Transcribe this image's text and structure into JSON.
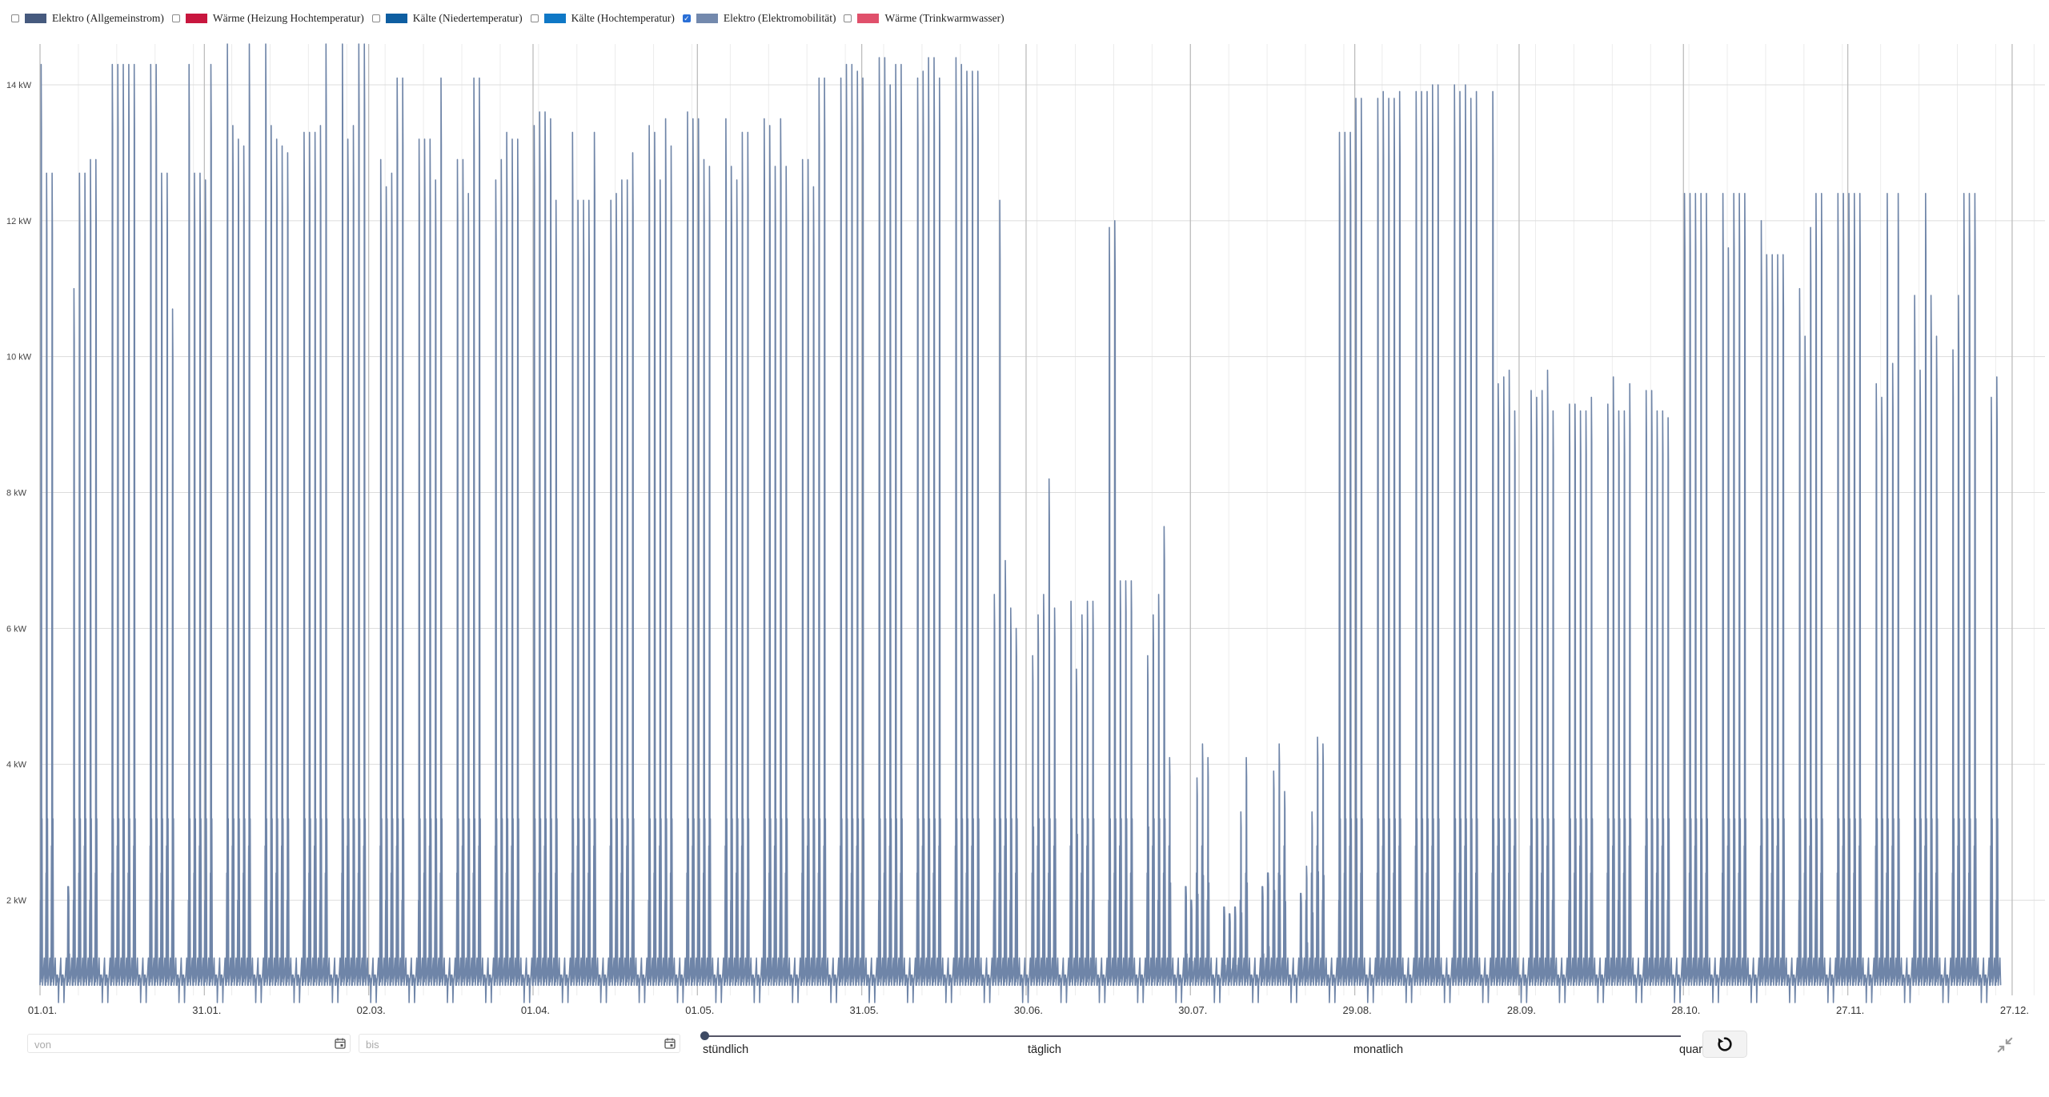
{
  "legend": [
    {
      "label": "Elektro (Allgemeinstrom)",
      "color": "#465a7e",
      "checked": false
    },
    {
      "label": "Wärme (Heizung Hochtemperatur)",
      "color": "#c8163e",
      "checked": false
    },
    {
      "label": "Kälte (Niedertemperatur)",
      "color": "#0e5ea1",
      "checked": false
    },
    {
      "label": "Kälte (Hochtemperatur)",
      "color": "#0f78c6",
      "checked": false
    },
    {
      "label": "Elektro (Elektromobilität)",
      "color": "#7389ad",
      "checked": true
    },
    {
      "label": "Wärme (Trinkwarmwasser)",
      "color": "#e0506b",
      "checked": false
    }
  ],
  "controls": {
    "from_placeholder": "von",
    "to_placeholder": "bis",
    "resolution_options": [
      "stündlich",
      "täglich",
      "monatlich",
      "quartalsweise"
    ],
    "selected_resolution": "stündlich",
    "reset_icon": "reset-icon",
    "collapse_icon": "collapse-icon"
  },
  "chart_data": {
    "type": "line",
    "title": "",
    "xlabel": "",
    "ylabel": "",
    "unit": "kW",
    "ylim": [
      0.6,
      14.6
    ],
    "yticks": [
      "2 kW",
      "4 kW",
      "6 kW",
      "8 kW",
      "10 kW",
      "12 kW",
      "14 kW"
    ],
    "ytick_values": [
      2,
      4,
      6,
      8,
      10,
      12,
      14
    ],
    "xticks": [
      "01.01.",
      "31.01.",
      "02.03.",
      "01.04.",
      "01.05.",
      "31.05.",
      "30.06.",
      "30.07.",
      "29.08.",
      "28.09.",
      "28.10.",
      "27.11.",
      "27.12."
    ],
    "xtick_days": [
      0,
      30,
      60,
      90,
      120,
      150,
      180,
      210,
      240,
      270,
      300,
      330,
      360
    ],
    "x_range_days": [
      0,
      366
    ],
    "grid": true,
    "series": [
      {
        "name": "Elektro (Elektromobilität)",
        "color": "#6f85a8",
        "baseline_kw": 0.75,
        "daily_peaks_kw": [
          14.3,
          12.7,
          12.7,
          0.9,
          0.9,
          2.2,
          11.0,
          12.7,
          12.7,
          12.9,
          12.9,
          0.9,
          0.9,
          14.3,
          14.3,
          14.3,
          14.3,
          14.3,
          0.9,
          0.9,
          14.3,
          14.3,
          12.7,
          12.7,
          10.7,
          0.9,
          0.9,
          14.3,
          12.7,
          12.7,
          12.6,
          14.3,
          0.9,
          0.9,
          14.6,
          13.4,
          13.2,
          13.1,
          14.6,
          0.9,
          0.9,
          14.6,
          13.4,
          13.2,
          13.1,
          13.0,
          0.9,
          0.9,
          13.3,
          13.3,
          13.3,
          13.4,
          14.6,
          0.9,
          0.9,
          14.6,
          13.2,
          13.4,
          14.6,
          14.6,
          0.9,
          0.9,
          12.9,
          12.5,
          12.7,
          14.1,
          14.1,
          0.9,
          0.9,
          13.2,
          13.2,
          13.2,
          12.6,
          14.1,
          0.9,
          0.9,
          12.9,
          12.9,
          12.4,
          14.1,
          14.1,
          0.9,
          0.9,
          12.6,
          12.9,
          13.3,
          13.2,
          13.2,
          0.9,
          0.9,
          13.4,
          13.6,
          13.6,
          13.5,
          12.3,
          0.9,
          0.9,
          13.3,
          12.3,
          12.3,
          12.3,
          13.3,
          0.9,
          0.9,
          12.3,
          12.4,
          12.6,
          12.6,
          13.0,
          0.9,
          0.9,
          13.4,
          13.3,
          12.6,
          13.5,
          13.1,
          0.9,
          0.9,
          13.6,
          13.5,
          13.5,
          12.9,
          12.8,
          0.9,
          0.9,
          13.5,
          12.8,
          12.6,
          13.3,
          13.3,
          0.9,
          0.9,
          13.5,
          13.4,
          12.8,
          13.5,
          12.8,
          0.9,
          0.9,
          12.9,
          12.9,
          12.5,
          14.1,
          14.1,
          0.9,
          0.9,
          14.1,
          14.3,
          14.3,
          14.2,
          14.1,
          0.9,
          0.9,
          14.4,
          14.4,
          14.0,
          14.3,
          14.3,
          0.9,
          0.9,
          14.1,
          14.2,
          14.4,
          14.4,
          14.1,
          0.9,
          0.9,
          14.4,
          14.3,
          14.2,
          14.2,
          14.2,
          0.9,
          0.9,
          6.5,
          12.3,
          7.0,
          6.3,
          6.0,
          0.9,
          0.9,
          5.6,
          6.2,
          6.5,
          8.2,
          6.3,
          0.9,
          0.9,
          6.4,
          5.4,
          6.2,
          6.4,
          6.4,
          0.9,
          0.9,
          11.9,
          12.0,
          6.7,
          6.7,
          6.7,
          0.9,
          0.9,
          5.6,
          6.2,
          6.5,
          7.5,
          4.1,
          0.9,
          0.9,
          2.2,
          2.0,
          3.8,
          4.3,
          4.1,
          0.9,
          0.9,
          1.9,
          1.8,
          1.9,
          3.3,
          4.1,
          0.9,
          0.9,
          2.2,
          2.4,
          3.9,
          4.3,
          3.6,
          0.9,
          0.9,
          2.1,
          2.5,
          3.3,
          4.4,
          4.3,
          0.9,
          0.9,
          13.3,
          13.3,
          13.3,
          13.8,
          13.8,
          0.9,
          0.9,
          13.8,
          13.9,
          13.8,
          13.8,
          13.9,
          0.9,
          0.9,
          13.9,
          13.9,
          13.9,
          14.0,
          14.0,
          0.9,
          0.9,
          14.0,
          13.9,
          14.0,
          13.8,
          13.9,
          0.9,
          0.9,
          13.9,
          9.6,
          9.7,
          9.8,
          9.2,
          0.9,
          0.9,
          9.5,
          9.4,
          9.5,
          9.8,
          9.2,
          0.9,
          0.9,
          9.3,
          9.3,
          9.2,
          9.2,
          9.4,
          0.9,
          0.9,
          9.3,
          9.7,
          9.2,
          9.2,
          9.6,
          0.9,
          0.9,
          9.5,
          9.5,
          9.2,
          9.2,
          9.1,
          0.9,
          0.9,
          12.4,
          12.4,
          12.4,
          12.4,
          12.4,
          0.9,
          0.9,
          12.4,
          11.6,
          12.4,
          12.4,
          12.4,
          0.9,
          0.9,
          12.0,
          11.5,
          11.5,
          11.5,
          11.5,
          0.9,
          0.9,
          11.0,
          10.3,
          11.9,
          12.4,
          12.4,
          0.9,
          0.9,
          12.4,
          12.4,
          12.4,
          12.4,
          12.4,
          0.9,
          0.9,
          9.6,
          9.4,
          12.4,
          9.9,
          12.4,
          0.9,
          0.9,
          10.9,
          9.8,
          12.4,
          10.9,
          10.3,
          0.9,
          0.9,
          10.1,
          10.9,
          12.4,
          12.4,
          12.4,
          0.9,
          0.9,
          9.4,
          9.7
        ]
      }
    ]
  }
}
